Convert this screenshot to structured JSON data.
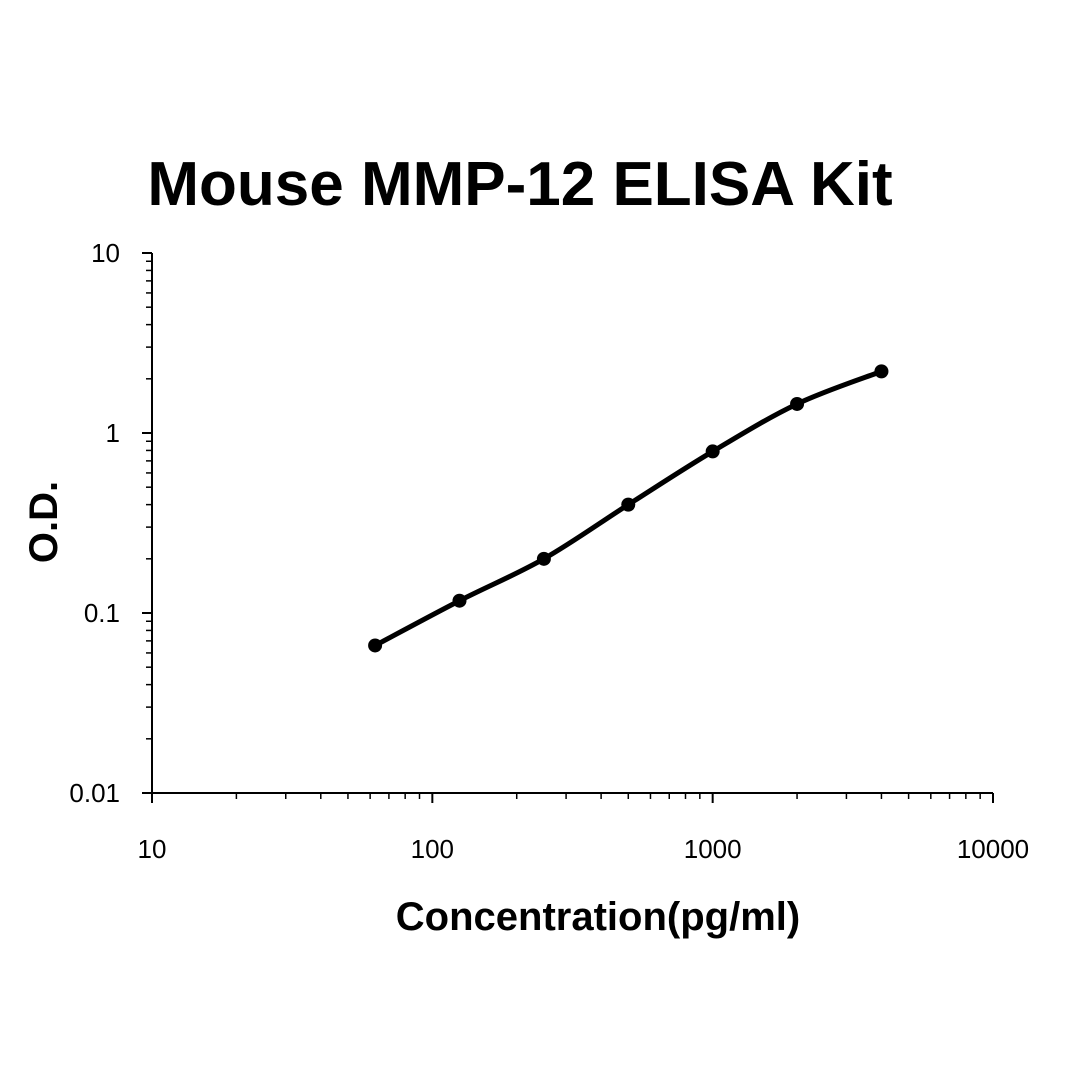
{
  "chart_data": {
    "type": "line",
    "title": "Mouse MMP-12 ELISA Kit",
    "xlabel": "Concentration(pg/ml)",
    "ylabel": "O.D.",
    "x_scale": "log",
    "y_scale": "log",
    "xlim": [
      10,
      10000
    ],
    "ylim": [
      0.01,
      10
    ],
    "x_ticks": [
      "10",
      "100",
      "1000",
      "10000"
    ],
    "y_ticks": [
      "0.01",
      "0.1",
      "1",
      "10"
    ],
    "grid": false,
    "legend": "none",
    "series": [
      {
        "x": [
          62.5,
          125,
          250,
          500,
          1000,
          2000,
          4000
        ],
        "y": [
          0.066,
          0.117,
          0.2,
          0.4,
          0.79,
          1.45,
          2.2
        ]
      }
    ]
  }
}
